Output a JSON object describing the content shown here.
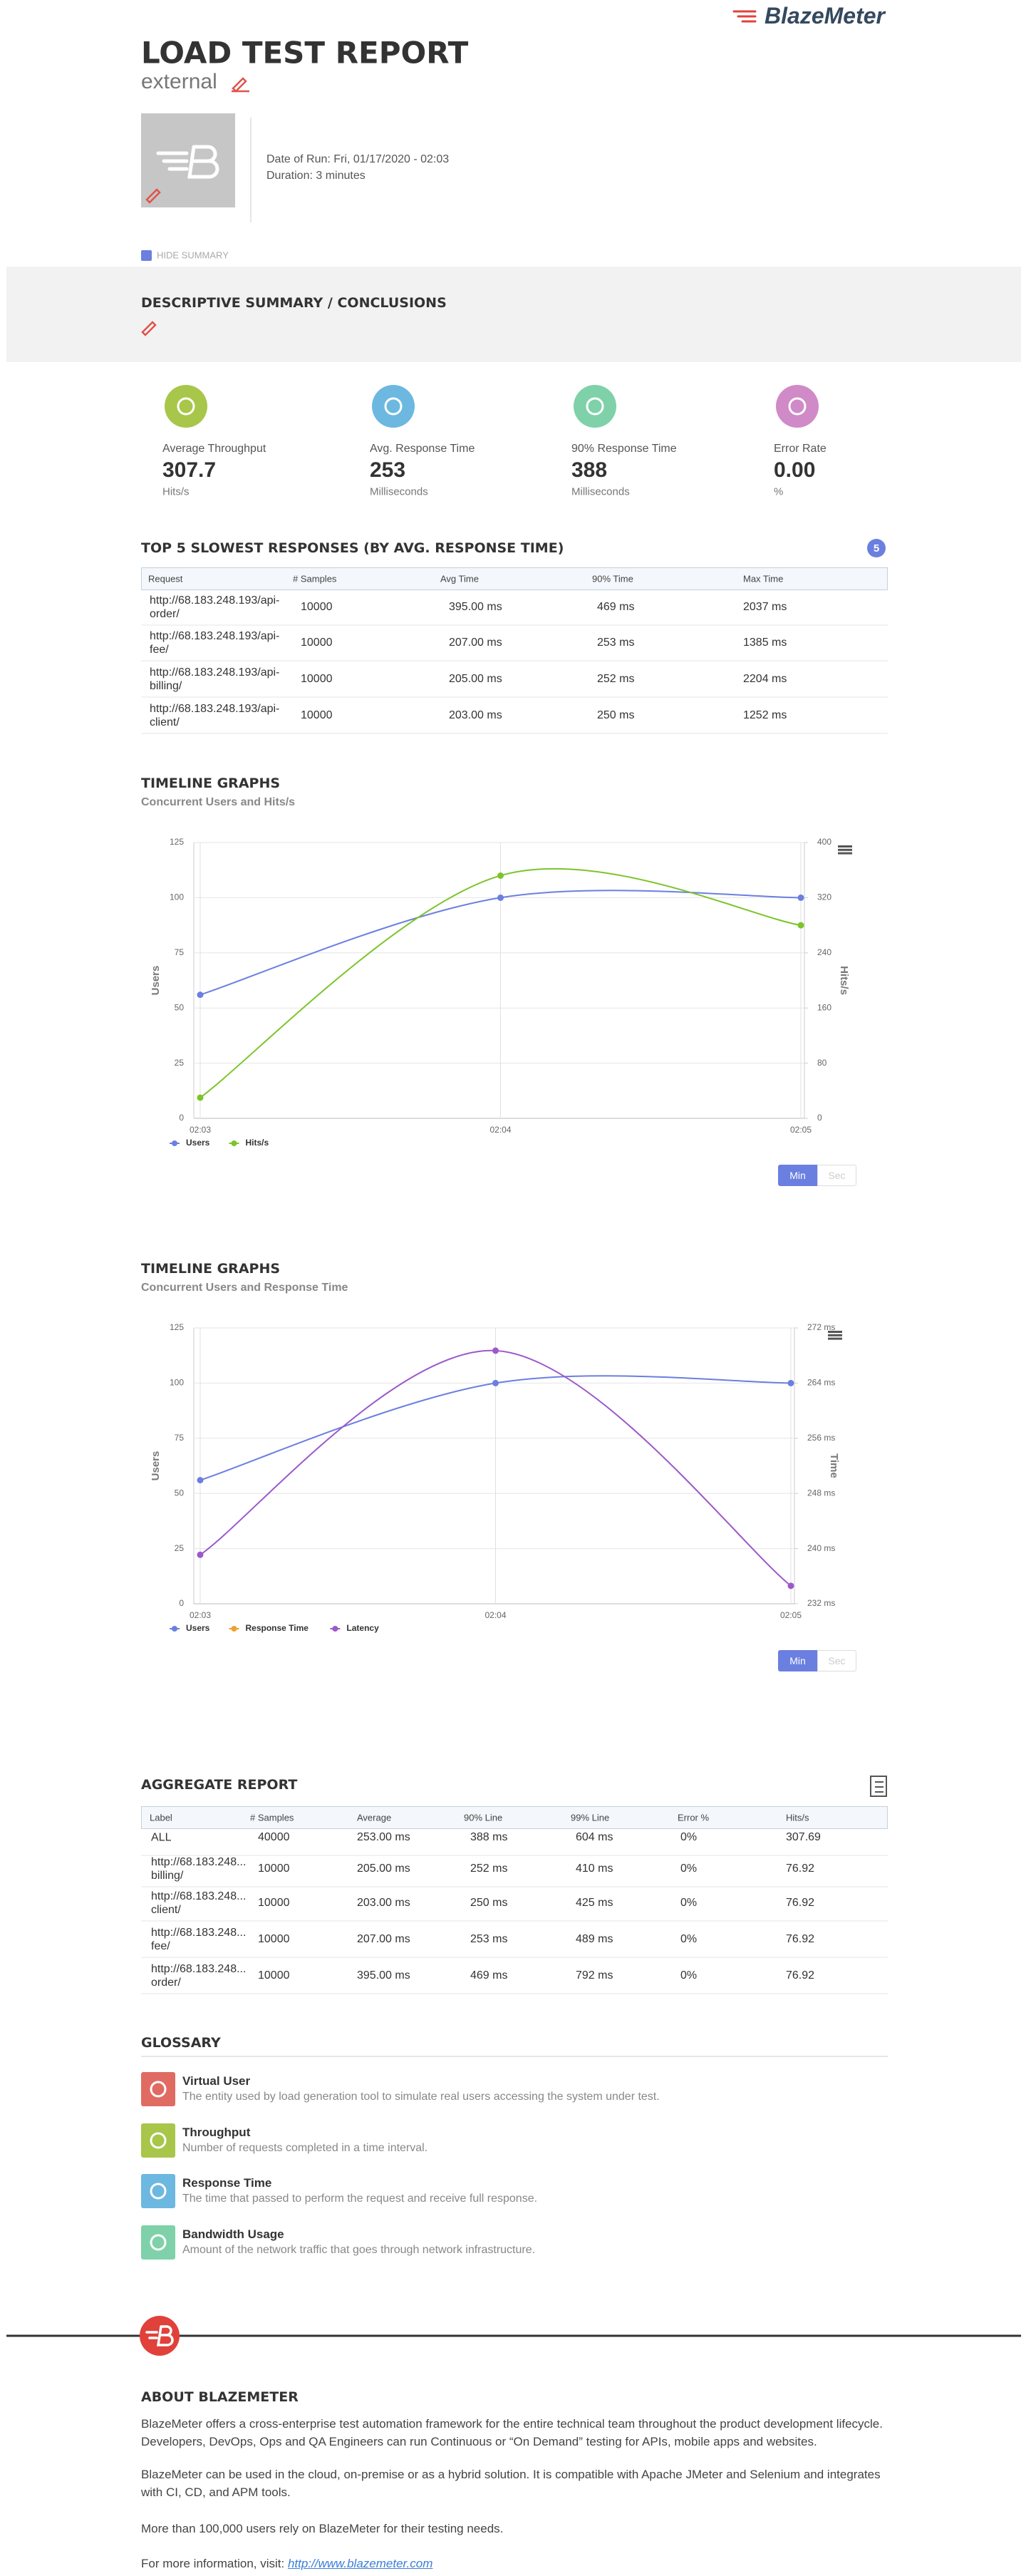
{
  "header": {
    "brand": "BlazeMeter",
    "title": "LOAD TEST REPORT",
    "name": "external",
    "date_of_run": "Date of Run: Fri, 01/17/2020 - 02:03",
    "duration": "Duration: 3 minutes",
    "hide_summary": "HIDE SUMMARY"
  },
  "summary": {
    "title": "DESCRIPTIVE SUMMARY / CONCLUSIONS"
  },
  "stats": [
    {
      "label": "Average Throughput",
      "value": "307.7",
      "unit": "Hits/s",
      "color": "#a8c64a"
    },
    {
      "label": "Avg. Response Time",
      "value": "253",
      "unit": "Milliseconds",
      "color": "#6cb8e0"
    },
    {
      "label": "90% Response Time",
      "value": "388",
      "unit": "Milliseconds",
      "color": "#7fd1a9"
    },
    {
      "label": "Error Rate",
      "value": "0.00",
      "unit": "%",
      "color": "#d08ac7"
    }
  ],
  "slowest": {
    "title": "TOP 5 SLOWEST RESPONSES (BY AVG. RESPONSE TIME)",
    "badge": "5",
    "columns": [
      "Request",
      "# Samples",
      "Avg Time",
      "90% Time",
      "Max Time"
    ],
    "rows": [
      [
        "http://68.183.248.193/api-order/",
        "10000",
        "395.00 ms",
        "469 ms",
        "2037 ms"
      ],
      [
        "http://68.183.248.193/api-fee/",
        "10000",
        "207.00 ms",
        "253 ms",
        "1385 ms"
      ],
      [
        "http://68.183.248.193/api-billing/",
        "10000",
        "205.00 ms",
        "252 ms",
        "2204 ms"
      ],
      [
        "http://68.183.248.193/api-client/",
        "10000",
        "203.00 ms",
        "250 ms",
        "1252 ms"
      ]
    ]
  },
  "chart_data": [
    {
      "type": "line",
      "title": "TIMELINE GRAPHS",
      "subtitle": "Concurrent Users and Hits/s",
      "categories": [
        "02:03",
        "02:04",
        "02:05"
      ],
      "ylabel": "Users",
      "y2label": "Hits/s",
      "ylim": [
        0,
        125
      ],
      "yticks": [
        0,
        25,
        50,
        75,
        100,
        125
      ],
      "y2lim": [
        0,
        400
      ],
      "y2ticks": [
        0,
        80,
        160,
        240,
        320,
        400
      ],
      "grid": true,
      "series": [
        {
          "name": "Users",
          "color": "#6b7fe0",
          "values": [
            56,
            100,
            100
          ]
        },
        {
          "name": "Hits/s",
          "color": "#7cc42a",
          "axis": "y2",
          "values": [
            30,
            352,
            280
          ]
        }
      ],
      "toggle": [
        "Min",
        "Sec"
      ]
    },
    {
      "type": "line",
      "title": "TIMELINE GRAPHS",
      "subtitle": "Concurrent Users and Response Time",
      "categories": [
        "02:03",
        "02:04",
        "02:05"
      ],
      "ylabel": "Users",
      "y2label": "Time",
      "ylim": [
        0,
        125
      ],
      "yticks": [
        0,
        25,
        50,
        75,
        100,
        125
      ],
      "y2lim": [
        232,
        272
      ],
      "y2ticks": [
        {
          "value": 232,
          "label": "232 ms"
        },
        {
          "value": 240,
          "label": "240 ms"
        },
        {
          "value": 248,
          "label": "248 ms"
        },
        {
          "value": 256,
          "label": "256 ms"
        },
        {
          "value": 264,
          "label": "264 ms"
        },
        {
          "value": 272,
          "label": "272 ms"
        }
      ],
      "grid": true,
      "series": [
        {
          "name": "Users",
          "color": "#6b7fe0",
          "values": [
            56,
            100,
            100
          ]
        },
        {
          "name": "Response Time",
          "color": "#f0a030",
          "axis": "y2",
          "values": [
            null,
            null,
            null
          ]
        },
        {
          "name": "Latency",
          "color": "#9b59c9",
          "axis": "y2",
          "values": [
            239.1,
            268.7,
            234.6
          ]
        }
      ],
      "toggle": [
        "Min",
        "Sec"
      ]
    }
  ],
  "aggregate": {
    "title": "AGGREGATE REPORT",
    "columns": [
      "Label",
      "# Samples",
      "Average",
      "90% Line",
      "99% Line",
      "Error %",
      "Hits/s"
    ],
    "rows": [
      [
        "ALL",
        "40000",
        "253.00 ms",
        "388 ms",
        "604 ms",
        "0%",
        "307.69"
      ],
      [
        "http://68.183.248...\nbilling/",
        "10000",
        "205.00 ms",
        "252 ms",
        "410 ms",
        "0%",
        "76.92"
      ],
      [
        "http://68.183.248...\nclient/",
        "10000",
        "203.00 ms",
        "250 ms",
        "425 ms",
        "0%",
        "76.92"
      ],
      [
        "http://68.183.248...\nfee/",
        "10000",
        "207.00 ms",
        "253 ms",
        "489 ms",
        "0%",
        "76.92"
      ],
      [
        "http://68.183.248...\norder/",
        "10000",
        "395.00 ms",
        "469 ms",
        "792 ms",
        "0%",
        "76.92"
      ]
    ]
  },
  "glossary": {
    "title": "GLOSSARY",
    "items": [
      {
        "title": "Virtual User",
        "text": "The entity used by load generation tool to simulate real users accessing the system under test.",
        "color": "#e06b63"
      },
      {
        "title": "Throughput",
        "text": "Number of requests completed in a time interval.",
        "color": "#a8c64a"
      },
      {
        "title": "Response Time",
        "text": "The time that passed to perform the request and receive full response.",
        "color": "#6cb8e0"
      },
      {
        "title": "Bandwidth Usage",
        "text": "Amount of the network traffic that goes through network infrastructure.",
        "color": "#7fd1a9"
      }
    ]
  },
  "about": {
    "title": "ABOUT BLAZEMETER",
    "paragraphs": [
      "BlazeMeter offers a cross-enterprise test automation framework for the entire technical team throughout the product development lifecycle. Developers, DevOps, Ops and QA Engineers can run Continuous or “On Demand” testing for APIs, mobile apps and websites.",
      "BlazeMeter can be used in the cloud, on-premise or as a hybrid solution. It is compatible with Apache JMeter and Selenium and integrates with CI, CD, and APM tools.",
      "More than 100,000 users rely on BlazeMeter for their testing needs."
    ],
    "link_prefix": "For more information, visit: ",
    "link": "http://www.blazemeter.com"
  }
}
